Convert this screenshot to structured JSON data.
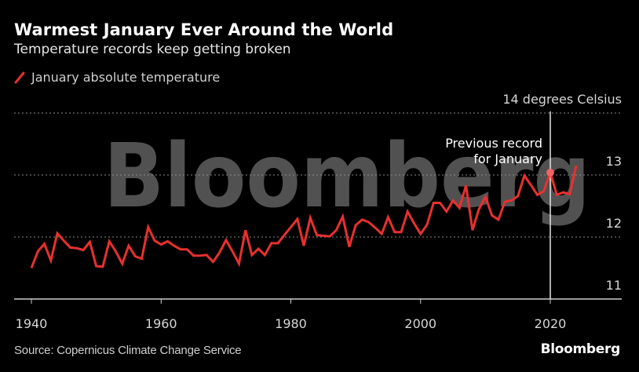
{
  "chart_data": {
    "type": "line",
    "title": "Warmest January Ever Around the World",
    "subtitle": "Temperature records keep getting broken",
    "xlabel": "",
    "ylabel": "14 degrees Celsius",
    "xlim": [
      1937,
      2031
    ],
    "ylim": [
      11,
      14
    ],
    "x_ticks": [
      1940,
      1960,
      1980,
      2000,
      2020
    ],
    "x_tick_labels": [
      "1940",
      "1960",
      "1980",
      "2000",
      "2020"
    ],
    "y_ticks": [
      11,
      12,
      13,
      14
    ],
    "y_tick_labels": [
      "11",
      "12",
      "13",
      "14 degrees Celsius"
    ],
    "grid": "horizontal-dotted",
    "legend": {
      "placement": "top-left",
      "entries": [
        "January absolute temperature"
      ]
    },
    "series": [
      {
        "name": "January absolute temperature",
        "color": "#e8302f",
        "x": [
          1940,
          1941,
          1942,
          1943,
          1944,
          1945,
          1946,
          1947,
          1948,
          1949,
          1950,
          1951,
          1952,
          1953,
          1954,
          1955,
          1956,
          1957,
          1958,
          1959,
          1960,
          1961,
          1962,
          1963,
          1964,
          1965,
          1966,
          1967,
          1968,
          1969,
          1970,
          1971,
          1972,
          1973,
          1974,
          1975,
          1976,
          1977,
          1978,
          1979,
          1980,
          1981,
          1982,
          1983,
          1984,
          1985,
          1986,
          1987,
          1988,
          1989,
          1990,
          1991,
          1992,
          1993,
          1994,
          1995,
          1996,
          1997,
          1998,
          1999,
          2000,
          2001,
          2002,
          2003,
          2004,
          2005,
          2006,
          2007,
          2008,
          2009,
          2010,
          2011,
          2012,
          2013,
          2014,
          2015,
          2016,
          2017,
          2018,
          2019,
          2020,
          2021,
          2022,
          2023,
          2024
        ],
        "values": [
          11.5,
          11.77,
          11.89,
          11.62,
          12.06,
          11.94,
          11.83,
          11.82,
          11.79,
          11.92,
          11.53,
          11.52,
          11.93,
          11.77,
          11.57,
          11.86,
          11.69,
          11.65,
          12.16,
          11.94,
          11.88,
          11.93,
          11.86,
          11.8,
          11.8,
          11.7,
          11.7,
          11.71,
          11.6,
          11.75,
          11.95,
          11.77,
          11.57,
          12.11,
          11.71,
          11.81,
          11.71,
          11.9,
          11.9,
          12.03,
          12.16,
          12.29,
          11.86,
          12.31,
          12.03,
          12.02,
          12.01,
          12.11,
          12.33,
          11.84,
          12.19,
          12.28,
          12.24,
          12.15,
          12.05,
          12.32,
          12.08,
          12.08,
          12.41,
          12.22,
          12.05,
          12.2,
          12.55,
          12.55,
          12.41,
          12.59,
          12.47,
          12.83,
          12.11,
          12.45,
          12.65,
          12.35,
          12.28,
          12.57,
          12.59,
          12.66,
          12.99,
          12.84,
          12.68,
          12.74,
          13.04,
          12.68,
          12.72,
          12.69,
          13.15
        ]
      }
    ],
    "annotations": [
      {
        "text_lines": [
          "Previous record",
          "for January"
        ],
        "x": 2020,
        "y": 13.04,
        "marker": "dot",
        "reference_line": "vertical"
      }
    ],
    "watermark": "Bloomberg"
  },
  "footer": {
    "source": "Source: Copernicus Climate Change Service",
    "brand": "Bloomberg"
  },
  "colors": {
    "background": "#000000",
    "line": "#e8302f",
    "grid": "#8a8a8a",
    "axis": "#cccccc",
    "watermark": "#5a5a5a"
  }
}
